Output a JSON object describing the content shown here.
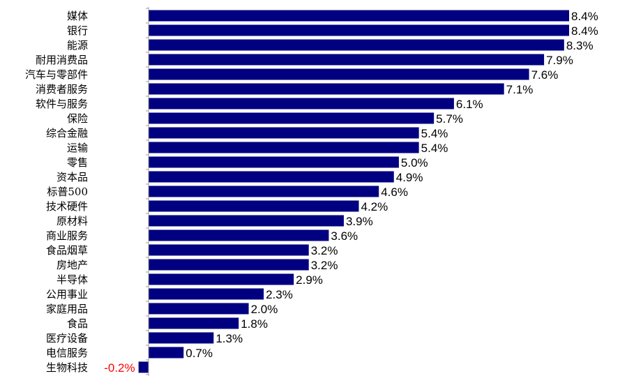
{
  "chart_data": {
    "type": "bar",
    "orientation": "horizontal",
    "categories": [
      "媒体",
      "银行",
      "能源",
      "耐用消费品",
      "汽车与零部件",
      "消费者服务",
      "软件与服务",
      "保险",
      "综合金融",
      "运输",
      "零售",
      "资本品",
      "标普500",
      "技术硬件",
      "原材料",
      "商业服务",
      "食品烟草",
      "房地产",
      "半导体",
      "公用事业",
      "家庭用品",
      "食品",
      "医疗设备",
      "电信服务",
      "生物科技"
    ],
    "values": [
      8.4,
      8.4,
      8.3,
      7.9,
      7.6,
      7.1,
      6.1,
      5.7,
      5.4,
      5.4,
      5.0,
      4.9,
      4.6,
      4.2,
      3.9,
      3.6,
      3.2,
      3.2,
      2.9,
      2.3,
      2.0,
      1.8,
      1.3,
      0.7,
      -0.2
    ],
    "value_labels": [
      "8.4%",
      "8.4%",
      "8.3%",
      "7.9%",
      "7.6%",
      "7.1%",
      "6.1%",
      "5.7%",
      "5.4%",
      "5.4%",
      "5.0%",
      "4.9%",
      "4.6%",
      "4.2%",
      "3.9%",
      "3.6%",
      "3.2%",
      "3.2%",
      "2.9%",
      "2.3%",
      "2.0%",
      "1.8%",
      "1.3%",
      "0.7%",
      "-0.2%"
    ],
    "unit": "%",
    "xlim": [
      -0.2,
      8.4
    ],
    "grid": false,
    "legend": "none",
    "bar_color": "#000080",
    "negative_label_color": "#ff0000",
    "label_color": "#000000"
  }
}
